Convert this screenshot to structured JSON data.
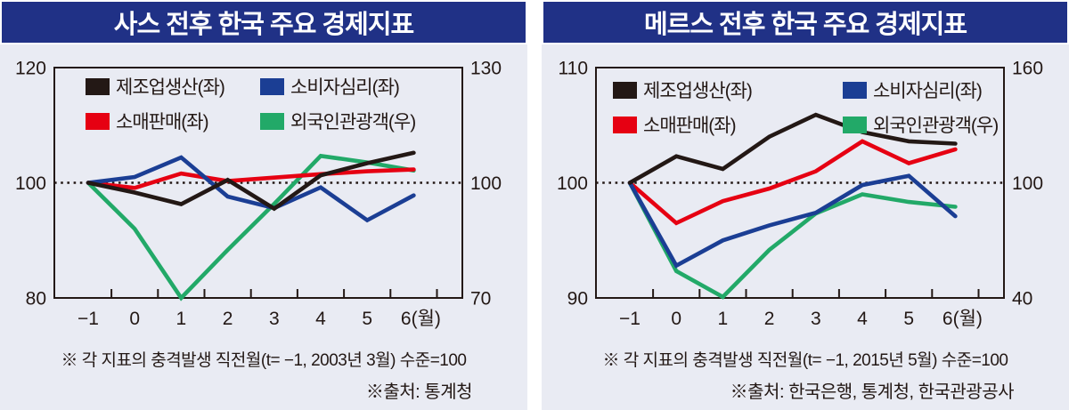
{
  "panels": [
    {
      "title": "사스 전후 한국 주요 경제지표",
      "footnote": "※ 각 지표의 충격발생 직전월(t= −1, 2003년 3월) 수준=100",
      "source": "※출처: 통계청",
      "chart_data": {
        "type": "line",
        "x_labels": [
          "−1",
          "0",
          "1",
          "2",
          "3",
          "4",
          "5",
          "6(월)"
        ],
        "x_values": [
          -1,
          0,
          1,
          2,
          3,
          4,
          5,
          6
        ],
        "left_axis": {
          "min": 80,
          "max": 120,
          "ticks": [
            120,
            100,
            80
          ]
        },
        "right_axis": {
          "min": 70,
          "max": 130,
          "ticks": [
            130,
            100,
            70
          ]
        },
        "reference_line": 100,
        "grid": false,
        "legend_position": "top-inside",
        "series": [
          {
            "name": "제조업생산(좌)",
            "axis": "left",
            "color": "#231815",
            "values": [
              100,
              98.3,
              96.3,
              100.5,
              95.5,
              101.3,
              103.4,
              105.2
            ]
          },
          {
            "name": "소매판매(좌)",
            "axis": "left",
            "color": "#e60012",
            "values": [
              100,
              99.1,
              101.6,
              100.3,
              100.9,
              101.5,
              102.0,
              102.3
            ]
          },
          {
            "name": "소비자심리(좌)",
            "axis": "left",
            "color": "#1b3e94",
            "values": [
              100,
              101.0,
              104.4,
              97.6,
              95.6,
              99.2,
              93.5,
              97.8
            ]
          },
          {
            "name": "외국인관광객(우)",
            "axis": "right",
            "color": "#22a968",
            "values": [
              100,
              88.0,
              70.0,
              82.5,
              94.5,
              107.0,
              105.3,
              103.2
            ]
          }
        ]
      }
    },
    {
      "title": "메르스 전후 한국 주요 경제지표",
      "footnote": "※ 각 지표의 충격발생 직전월(t= −1, 2015년 5월) 수준=100",
      "source": "※출처: 한국은행, 통계청, 한국관광공사",
      "chart_data": {
        "type": "line",
        "x_labels": [
          "−1",
          "0",
          "1",
          "2",
          "3",
          "4",
          "5",
          "6(월)"
        ],
        "x_values": [
          -1,
          0,
          1,
          2,
          3,
          4,
          5,
          6
        ],
        "left_axis": {
          "min": 90,
          "max": 110,
          "ticks": [
            110,
            100,
            90
          ]
        },
        "right_axis": {
          "min": 40,
          "max": 160,
          "ticks": [
            160,
            100,
            40
          ]
        },
        "reference_line": 100,
        "grid": false,
        "legend_position": "top-inside",
        "series": [
          {
            "name": "제조업생산(좌)",
            "axis": "left",
            "color": "#231815",
            "values": [
              100,
              102.3,
              101.2,
              104.0,
              105.9,
              104.4,
              103.6,
              103.4
            ]
          },
          {
            "name": "소매판매(좌)",
            "axis": "left",
            "color": "#e60012",
            "values": [
              100,
              96.5,
              98.4,
              99.5,
              101.0,
              103.6,
              101.7,
              102.9
            ]
          },
          {
            "name": "소비자심리(좌)",
            "axis": "left",
            "color": "#1b3e94",
            "values": [
              100,
              92.8,
              95.0,
              96.3,
              97.4,
              99.8,
              100.6,
              97.1
            ]
          },
          {
            "name": "외국인관광객(우)",
            "axis": "right",
            "color": "#22a968",
            "values": [
              100,
              54.0,
              40.5,
              65.0,
              84.0,
              94.0,
              90.0,
              87.5
            ]
          }
        ]
      }
    }
  ]
}
